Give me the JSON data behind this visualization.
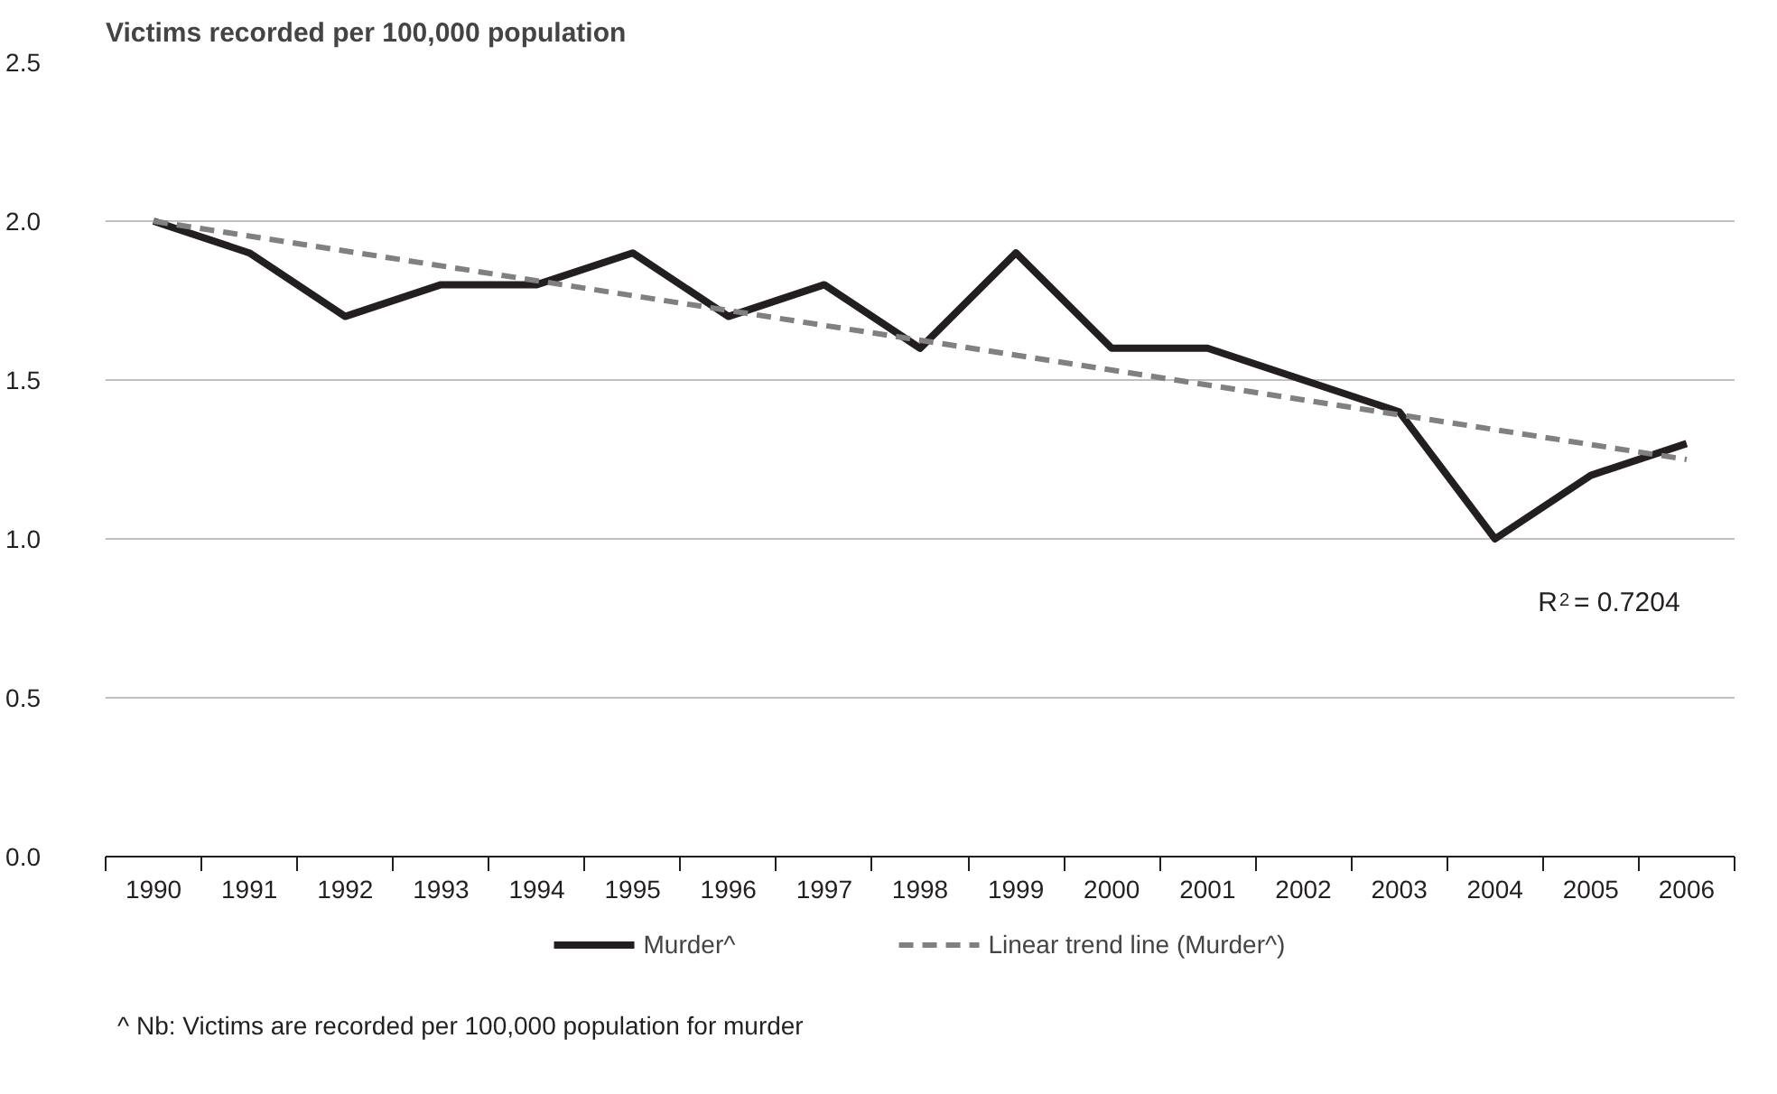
{
  "chart_data": {
    "type": "line",
    "title": "Victims recorded per 100,000 population",
    "x": [
      1990,
      1991,
      1992,
      1993,
      1994,
      1995,
      1996,
      1997,
      1998,
      1999,
      2000,
      2001,
      2002,
      2003,
      2004,
      2005,
      2006
    ],
    "series": [
      {
        "name": "Murder^",
        "color": "#231f20",
        "line_style": "solid",
        "values": [
          2.0,
          1.9,
          1.7,
          1.8,
          1.8,
          1.9,
          1.7,
          1.8,
          1.6,
          1.9,
          1.6,
          1.6,
          1.5,
          1.4,
          1.0,
          1.2,
          1.3
        ]
      },
      {
        "name": "Linear trend line (Murder^)",
        "type": "line",
        "color": "#808080",
        "line_style": "dashed",
        "x": [
          1990,
          2006
        ],
        "values": [
          2.0,
          1.25
        ]
      }
    ],
    "xlim": [
      1989.5,
      2006.5
    ],
    "xticks": [
      1990,
      1991,
      1992,
      1993,
      1994,
      1995,
      1996,
      1997,
      1998,
      1999,
      2000,
      2001,
      2002,
      2003,
      2004,
      2005,
      2006
    ],
    "ylim": [
      0,
      2.5
    ],
    "yticks": [
      {
        "value": 0,
        "label": "0.0"
      },
      {
        "value": 0.5,
        "label": "0.5"
      },
      {
        "value": 1,
        "label": "1.0"
      },
      {
        "value": 1.5,
        "label": "1.5"
      },
      {
        "value": 2,
        "label": "2.0"
      },
      {
        "value": 2.5,
        "label": "2.5"
      }
    ],
    "grid": "y",
    "legend": "bottom",
    "marker": "none",
    "annotations": [
      "R$^{2}$ = 0.7204",
      "^ Nb: Victims are recorded per 100,000 population for murder"
    ]
  }
}
